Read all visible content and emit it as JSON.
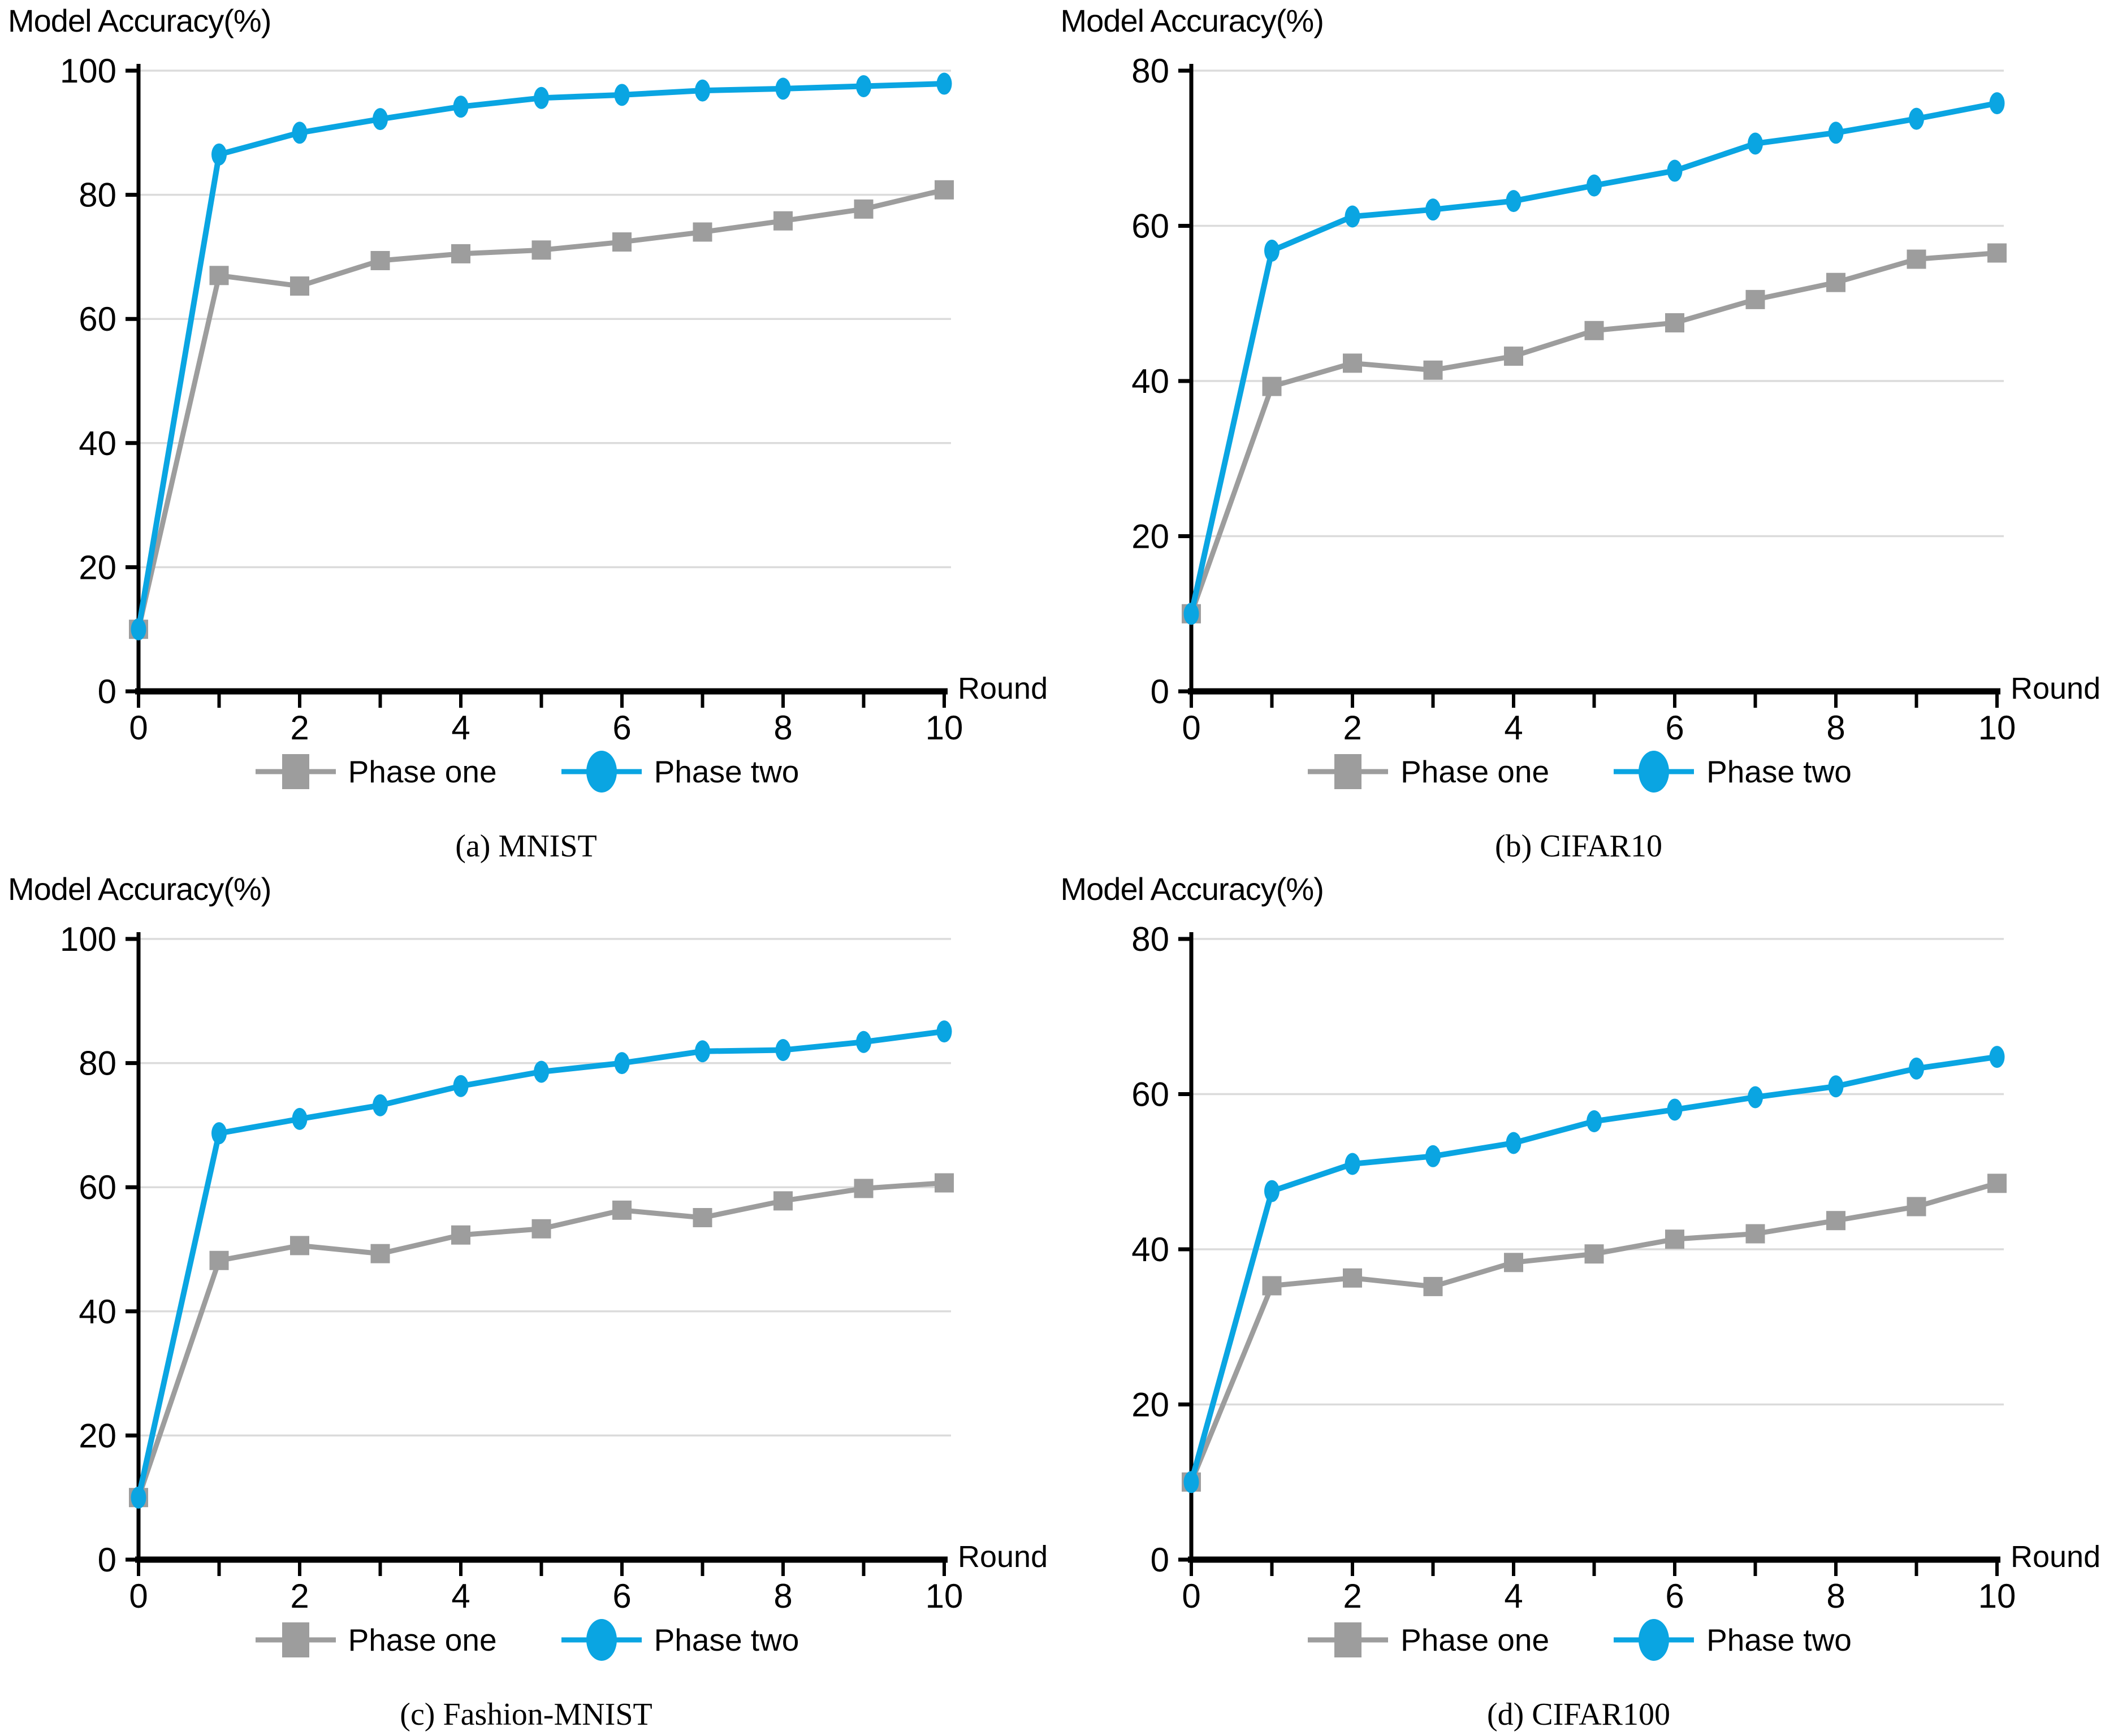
{
  "figure": {
    "background": "#ffffff",
    "grid_color": "#DBDBDB",
    "axis_color": "#000000",
    "legend": {
      "items": [
        {
          "label": "Phase one",
          "marker": "square",
          "color": "#9D9D9D"
        },
        {
          "label": "Phase two",
          "marker": "circle",
          "color": "#0AA5E2"
        }
      ]
    }
  },
  "chart_data": [
    {
      "type": "line",
      "caption": "(a) MNIST",
      "ylabel": "Model Accuracy(%)",
      "xlabel": "Round",
      "x": [
        0,
        1,
        2,
        3,
        4,
        5,
        6,
        7,
        8,
        9,
        10
      ],
      "xticks_labeled": [
        0,
        2,
        4,
        6,
        8,
        10
      ],
      "ylim": [
        0,
        100
      ],
      "yticks": [
        0,
        20,
        40,
        60,
        80,
        100
      ],
      "grid": true,
      "legend_position": "bottom",
      "series": [
        {
          "name": "Phase one",
          "marker": "square",
          "color": "#9D9D9D",
          "values": [
            10,
            67.0,
            65.3,
            69.4,
            70.5,
            71.1,
            72.4,
            74.0,
            75.8,
            77.7,
            80.8
          ]
        },
        {
          "name": "Phase two",
          "marker": "circle",
          "color": "#0AA5E2",
          "values": [
            10,
            86.5,
            90.0,
            92.2,
            94.2,
            95.6,
            96.1,
            96.8,
            97.1,
            97.5,
            97.9
          ]
        }
      ]
    },
    {
      "type": "line",
      "caption": "(b) CIFAR10",
      "ylabel": "Model Accuracy(%)",
      "xlabel": "Round",
      "x": [
        0,
        1,
        2,
        3,
        4,
        5,
        6,
        7,
        8,
        9,
        10
      ],
      "xticks_labeled": [
        0,
        2,
        4,
        6,
        8,
        10
      ],
      "ylim": [
        0,
        80
      ],
      "yticks": [
        0,
        20,
        40,
        60,
        80
      ],
      "grid": true,
      "legend_position": "bottom",
      "series": [
        {
          "name": "Phase one",
          "marker": "square",
          "color": "#9D9D9D",
          "values": [
            10,
            39.3,
            42.3,
            41.4,
            43.2,
            46.5,
            47.5,
            50.5,
            52.7,
            55.7,
            56.5
          ]
        },
        {
          "name": "Phase two",
          "marker": "circle",
          "color": "#0AA5E2",
          "values": [
            10,
            56.8,
            61.2,
            62.1,
            63.2,
            65.2,
            67.1,
            70.6,
            72.0,
            73.8,
            75.8
          ]
        }
      ]
    },
    {
      "type": "line",
      "caption": "(c) Fashion-MNIST",
      "ylabel": "Model Accuracy(%)",
      "xlabel": "Round",
      "x": [
        0,
        1,
        2,
        3,
        4,
        5,
        6,
        7,
        8,
        9,
        10
      ],
      "xticks_labeled": [
        0,
        2,
        4,
        6,
        8,
        10
      ],
      "ylim": [
        0,
        100
      ],
      "yticks": [
        0,
        20,
        40,
        60,
        80,
        100
      ],
      "grid": true,
      "legend_position": "bottom",
      "series": [
        {
          "name": "Phase one",
          "marker": "square",
          "color": "#9D9D9D",
          "values": [
            10,
            48.2,
            50.6,
            49.3,
            52.3,
            53.3,
            56.3,
            55.1,
            57.8,
            59.8,
            60.7
          ]
        },
        {
          "name": "Phase two",
          "marker": "circle",
          "color": "#0AA5E2",
          "values": [
            10,
            68.7,
            71.0,
            73.2,
            76.3,
            78.6,
            80.0,
            81.9,
            82.1,
            83.4,
            85.1
          ]
        }
      ]
    },
    {
      "type": "line",
      "caption": "(d) CIFAR100",
      "ylabel": "Model Accuracy(%)",
      "xlabel": "Round",
      "x": [
        0,
        1,
        2,
        3,
        4,
        5,
        6,
        7,
        8,
        9,
        10
      ],
      "xticks_labeled": [
        0,
        2,
        4,
        6,
        8,
        10
      ],
      "ylim": [
        0,
        80
      ],
      "yticks": [
        0,
        20,
        40,
        60,
        80
      ],
      "grid": true,
      "legend_position": "bottom",
      "series": [
        {
          "name": "Phase one",
          "marker": "square",
          "color": "#9D9D9D",
          "values": [
            10,
            35.3,
            36.3,
            35.2,
            38.3,
            39.4,
            41.3,
            42.0,
            43.7,
            45.5,
            48.5
          ]
        },
        {
          "name": "Phase two",
          "marker": "circle",
          "color": "#0AA5E2",
          "values": [
            10,
            47.5,
            51.0,
            52.0,
            53.7,
            56.5,
            58.0,
            59.6,
            61.0,
            63.3,
            64.8
          ]
        }
      ]
    }
  ]
}
